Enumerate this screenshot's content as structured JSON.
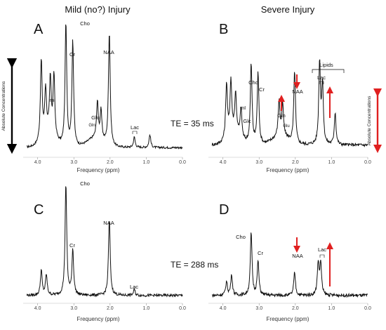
{
  "column_titles": {
    "left": "Mild (no?) Injury",
    "right": "Severe Injury"
  },
  "te_labels": {
    "short": "TE = 35 ms",
    "long": "TE = 288 ms"
  },
  "axis": {
    "title": "Frequency (ppm)",
    "ticks": [
      "4.0",
      "3.0",
      "2.0",
      "1.0",
      "0.0"
    ]
  },
  "side_labels": {
    "left": "Absolute Concentrations",
    "right": "Absolute Concentrations"
  },
  "colors": {
    "line": "#111111",
    "arrow_black": "#000000",
    "arrow_red": "#e02020"
  },
  "chart_data": [
    {
      "panel": "A",
      "type": "line",
      "xlabel": "Frequency (ppm)",
      "xlim": [
        4.4,
        0.0
      ],
      "x_reversed": true,
      "peak_labels": [
        "Cho",
        "Cr",
        "NAA",
        "mI",
        "Glu",
        "Gln",
        "Lac"
      ],
      "peaks": [
        {
          "ppm": 3.9,
          "height": 0.62
        },
        {
          "ppm": 3.78,
          "height": 0.35
        },
        {
          "ppm": 3.65,
          "height": 0.43
        },
        {
          "ppm": 3.55,
          "height": 0.48
        },
        {
          "ppm": 3.22,
          "height": 0.95
        },
        {
          "ppm": 3.03,
          "height": 0.82
        },
        {
          "ppm": 2.35,
          "height": 0.28
        },
        {
          "ppm": 2.25,
          "height": 0.22
        },
        {
          "ppm": 2.02,
          "height": 0.88
        },
        {
          "ppm": 1.33,
          "height": 0.08
        },
        {
          "ppm": 0.9,
          "height": 0.1
        }
      ],
      "baseline": 0.02
    },
    {
      "panel": "B",
      "type": "line",
      "xlabel": "Frequency (ppm)",
      "xlim": [
        4.4,
        0.0
      ],
      "x_reversed": true,
      "peak_labels": [
        "Cho",
        "Cr",
        "NAA",
        "mI",
        "Glc",
        "Gln",
        "Glu",
        "Lac",
        "Lipids"
      ],
      "peaks": [
        {
          "ppm": 3.9,
          "height": 0.42
        },
        {
          "ppm": 3.78,
          "height": 0.4
        },
        {
          "ppm": 3.65,
          "height": 0.3
        },
        {
          "ppm": 3.5,
          "height": 0.22
        },
        {
          "ppm": 3.22,
          "height": 0.62
        },
        {
          "ppm": 3.03,
          "height": 0.56
        },
        {
          "ppm": 2.45,
          "height": 0.27
        },
        {
          "ppm": 2.35,
          "height": 0.24
        },
        {
          "ppm": 2.02,
          "height": 0.56
        },
        {
          "ppm": 1.33,
          "height": 0.63
        },
        {
          "ppm": 1.25,
          "height": 0.45
        },
        {
          "ppm": 0.9,
          "height": 0.25
        }
      ],
      "baseline": 0.04
    },
    {
      "panel": "C",
      "type": "line",
      "xlabel": "Frequency (ppm)",
      "xlim": [
        4.4,
        0.0
      ],
      "x_reversed": true,
      "peak_labels": [
        "Cho",
        "Cr",
        "NAA",
        "Lac"
      ],
      "peaks": [
        {
          "ppm": 3.9,
          "height": 0.22
        },
        {
          "ppm": 3.76,
          "height": 0.18
        },
        {
          "ppm": 3.22,
          "height": 0.97
        },
        {
          "ppm": 3.03,
          "height": 0.4
        },
        {
          "ppm": 2.02,
          "height": 0.67
        },
        {
          "ppm": 1.33,
          "height": 0.05
        }
      ],
      "baseline": 0.02
    },
    {
      "panel": "D",
      "type": "line",
      "xlabel": "Frequency (ppm)",
      "xlim": [
        4.4,
        0.0
      ],
      "x_reversed": true,
      "peak_labels": [
        "Cho",
        "Cr",
        "NAA",
        "Lac"
      ],
      "peaks": [
        {
          "ppm": 3.9,
          "height": 0.12
        },
        {
          "ppm": 3.76,
          "height": 0.18
        },
        {
          "ppm": 3.22,
          "height": 0.55
        },
        {
          "ppm": 3.03,
          "height": 0.3
        },
        {
          "ppm": 2.02,
          "height": 0.2
        },
        {
          "ppm": 1.37,
          "height": 0.28
        },
        {
          "ppm": 1.3,
          "height": 0.28
        }
      ],
      "baseline": 0.02
    }
  ]
}
